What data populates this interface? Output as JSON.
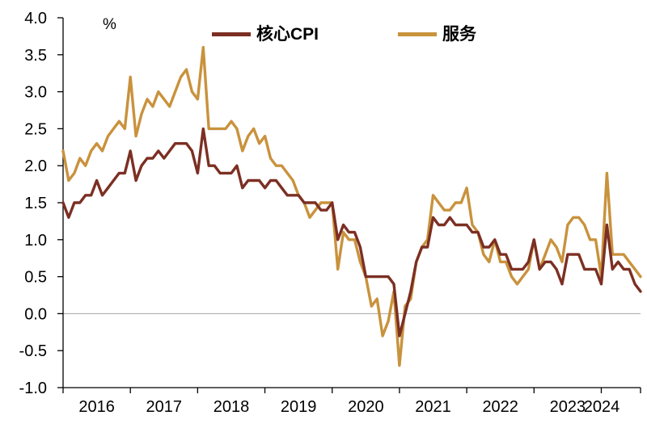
{
  "unit_label": "%",
  "chart_data": {
    "type": "line",
    "title": "",
    "xlabel": "",
    "ylabel": "%",
    "ylim": [
      -1.0,
      4.0
    ],
    "y_tick_step": 0.5,
    "y_tick_labels": [
      "4.0",
      "3.5",
      "3.0",
      "2.5",
      "2.0",
      "1.5",
      "1.0",
      "0.5",
      "0.0",
      "-0.5",
      "-1.0"
    ],
    "x_tick_labels": [
      "2016",
      "2017",
      "2018",
      "2019",
      "2020",
      "2021",
      "2022",
      "2023",
      "2024"
    ],
    "x_frequency": "monthly",
    "x_range": "2016-01 to 2024-08",
    "grid": false,
    "zero_line": true,
    "legend_position": "top-center",
    "axis_color": "#000000",
    "zero_line_color": "#a6a6a6",
    "series": [
      {
        "name": "核心CPI",
        "color": "#7c2f23",
        "values": [
          1.5,
          1.3,
          1.5,
          1.5,
          1.6,
          1.6,
          1.8,
          1.6,
          1.7,
          1.8,
          1.9,
          1.9,
          2.2,
          1.8,
          2.0,
          2.1,
          2.1,
          2.2,
          2.1,
          2.2,
          2.3,
          2.3,
          2.3,
          2.2,
          1.9,
          2.5,
          2.0,
          2.0,
          1.9,
          1.9,
          1.9,
          2.0,
          1.7,
          1.8,
          1.8,
          1.8,
          1.7,
          1.8,
          1.8,
          1.7,
          1.6,
          1.6,
          1.6,
          1.5,
          1.5,
          1.5,
          1.4,
          1.4,
          1.5,
          1.0,
          1.2,
          1.1,
          1.1,
          0.9,
          0.5,
          0.5,
          0.5,
          0.5,
          0.5,
          0.4,
          -0.3,
          0.0,
          0.3,
          0.7,
          0.9,
          0.9,
          1.3,
          1.2,
          1.2,
          1.3,
          1.2,
          1.2,
          1.2,
          1.1,
          1.1,
          0.9,
          0.9,
          1.0,
          0.8,
          0.8,
          0.6,
          0.6,
          0.6,
          0.7,
          1.0,
          0.6,
          0.7,
          0.7,
          0.6,
          0.4,
          0.8,
          0.8,
          0.8,
          0.6,
          0.6,
          0.6,
          0.4,
          1.2,
          0.6,
          0.7,
          0.6,
          0.6,
          0.4,
          0.3
        ]
      },
      {
        "name": "服务",
        "color": "#c9923d",
        "values": [
          2.2,
          1.8,
          1.9,
          2.1,
          2.0,
          2.2,
          2.3,
          2.2,
          2.4,
          2.5,
          2.6,
          2.5,
          3.2,
          2.4,
          2.7,
          2.9,
          2.8,
          3.0,
          2.9,
          2.8,
          3.0,
          3.2,
          3.3,
          3.0,
          2.9,
          3.6,
          2.5,
          2.5,
          2.5,
          2.5,
          2.6,
          2.5,
          2.2,
          2.4,
          2.5,
          2.3,
          2.4,
          2.1,
          2.0,
          2.0,
          1.9,
          1.8,
          1.6,
          1.5,
          1.3,
          1.4,
          1.5,
          1.5,
          1.5,
          0.6,
          1.1,
          1.0,
          1.0,
          0.7,
          0.5,
          0.1,
          0.2,
          -0.3,
          -0.1,
          0.3,
          -0.7,
          0.1,
          0.2,
          0.7,
          0.9,
          1.0,
          1.6,
          1.5,
          1.4,
          1.4,
          1.5,
          1.5,
          1.7,
          1.2,
          1.1,
          0.8,
          0.7,
          1.0,
          0.7,
          0.7,
          0.5,
          0.4,
          0.5,
          0.6,
          1.0,
          0.6,
          0.8,
          1.0,
          0.9,
          0.7,
          1.2,
          1.3,
          1.3,
          1.2,
          1.0,
          1.0,
          0.5,
          1.9,
          0.8,
          0.8,
          0.8,
          0.7,
          0.6,
          0.5
        ]
      }
    ]
  }
}
